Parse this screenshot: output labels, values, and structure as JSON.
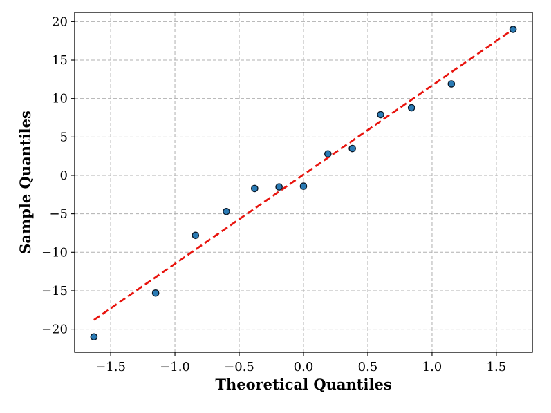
{
  "chart_data": {
    "type": "scatter",
    "title": "",
    "xlabel": "Theoretical Quantiles",
    "ylabel": "Sample Quantiles",
    "xlim": [
      -1.78,
      1.78
    ],
    "ylim": [
      -23.0,
      21.2
    ],
    "xticks": [
      -1.5,
      -1.0,
      -0.5,
      0.0,
      0.5,
      1.0,
      1.5
    ],
    "xtick_labels": [
      "−1.5",
      "−1.0",
      "−0.5",
      "0.0",
      "0.5",
      "1.0",
      "1.5"
    ],
    "yticks": [
      -20,
      -15,
      -10,
      -5,
      0,
      5,
      10,
      15,
      20
    ],
    "ytick_labels": [
      "−20",
      "−15",
      "−10",
      "−5",
      "0",
      "5",
      "10",
      "15",
      "20"
    ],
    "grid": true,
    "points": [
      {
        "x": -1.63,
        "y": -21.0
      },
      {
        "x": -1.15,
        "y": -15.3
      },
      {
        "x": -0.84,
        "y": -7.8
      },
      {
        "x": -0.6,
        "y": -4.7
      },
      {
        "x": -0.38,
        "y": -1.7
      },
      {
        "x": -0.19,
        "y": -1.5
      },
      {
        "x": 0.0,
        "y": -1.4
      },
      {
        "x": 0.19,
        "y": 2.8
      },
      {
        "x": 0.38,
        "y": 3.5
      },
      {
        "x": 0.6,
        "y": 7.9
      },
      {
        "x": 0.84,
        "y": 8.8
      },
      {
        "x": 1.15,
        "y": 11.9
      },
      {
        "x": 1.63,
        "y": 19.0
      }
    ],
    "reference_line": {
      "x": [
        -1.63,
        1.63
      ],
      "y": [
        -18.8,
        19.0
      ]
    },
    "colors": {
      "point_fill": "#2a7bb5",
      "point_edge": "#0b1a2a",
      "reference_line": "#e8140e",
      "grid": "#b0b0b0"
    }
  }
}
